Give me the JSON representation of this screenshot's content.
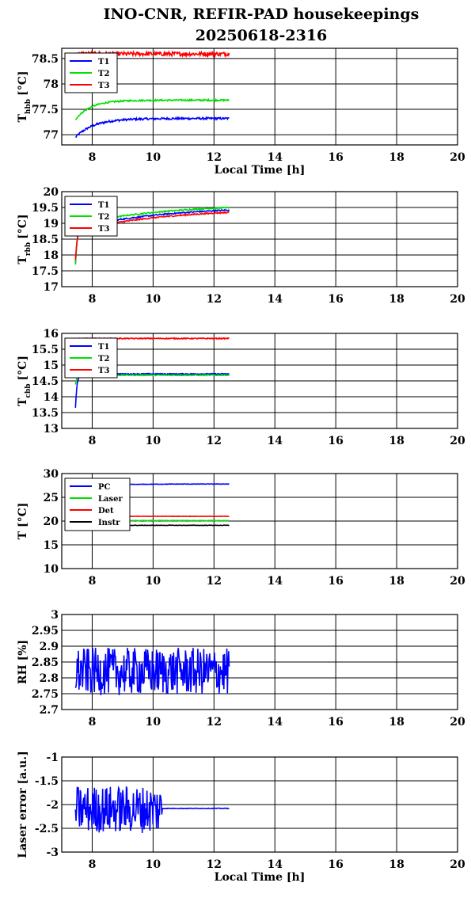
{
  "title_line1": "INO-CNR, REFIR-PAD housekeepings",
  "title_line2": "20250618-2316",
  "colors": {
    "blue": "#0000ff",
    "green": "#00e000",
    "red": "#ff0000",
    "black": "#000000"
  },
  "chart_data": [
    {
      "type": "line",
      "ylabel_main": "T",
      "ylabel_sub": "hbb",
      "ylabel_tail": "[°C]",
      "xlabel": "Local Time [h]",
      "xlim": [
        7,
        20
      ],
      "ylim": [
        76.8,
        78.7
      ],
      "xticks": [
        "8",
        "10",
        "12",
        "14",
        "16",
        "18",
        "20"
      ],
      "yticks": [
        "77",
        "77.5",
        "78",
        "78.5"
      ],
      "grid": true,
      "legend_position": "top-left",
      "series": [
        {
          "name": "T1",
          "color": "blue",
          "start": 76.95,
          "level": 77.32,
          "tau": 0.6,
          "noise": 0.02
        },
        {
          "name": "T2",
          "color": "green",
          "start": 77.3,
          "level": 77.68,
          "tau": 0.5,
          "noise": 0.015
        },
        {
          "name": "T3",
          "color": "red",
          "start": 78.6,
          "level": 78.59,
          "tau": 0.5,
          "noise": 0.04
        }
      ]
    },
    {
      "type": "line",
      "ylabel_main": "T",
      "ylabel_sub": "rbb",
      "ylabel_tail": "[°C]",
      "xlabel": "",
      "xlim": [
        7,
        20
      ],
      "ylim": [
        17,
        20
      ],
      "xticks": [
        "8",
        "10",
        "12",
        "14",
        "16",
        "18",
        "20"
      ],
      "yticks": [
        "17",
        "17.5",
        "18",
        "18.5",
        "19",
        "19.5",
        "20"
      ],
      "grid": true,
      "legend_position": "top-left",
      "series": [
        {
          "name": "T1",
          "color": "blue",
          "start": 17.75,
          "level": 19.55,
          "drift": 0.7,
          "tau": 0.08,
          "noise": 0.02
        },
        {
          "name": "T2",
          "color": "green",
          "start": 17.7,
          "level": 19.62,
          "drift": 0.65,
          "tau": 0.08,
          "noise": 0.02
        },
        {
          "name": "T3",
          "color": "red",
          "start": 17.85,
          "level": 19.48,
          "drift": 0.72,
          "tau": 0.08,
          "noise": 0.02
        }
      ]
    },
    {
      "type": "line",
      "ylabel_main": "T",
      "ylabel_sub": "cbb",
      "ylabel_tail": "[°C]",
      "xlabel": "",
      "xlim": [
        7,
        20
      ],
      "ylim": [
        13,
        16
      ],
      "xticks": [
        "8",
        "10",
        "12",
        "14",
        "16",
        "18",
        "20"
      ],
      "yticks": [
        "13",
        "13.5",
        "14",
        "14.5",
        "15",
        "15.5",
        "16"
      ],
      "grid": true,
      "legend_position": "top-left",
      "series": [
        {
          "name": "T1",
          "color": "blue",
          "start": 13.65,
          "level": 14.72,
          "tau": 0.05,
          "noise": 0.015
        },
        {
          "name": "T2",
          "color": "green",
          "start": 14.4,
          "level": 14.68,
          "tau": 0.05,
          "noise": 0.015
        },
        {
          "name": "T3",
          "color": "red",
          "start": 15.8,
          "level": 15.84,
          "tau": 0.05,
          "noise": 0.015
        }
      ]
    },
    {
      "type": "line",
      "ylabel_main": "T [°C]",
      "ylabel_sub": "",
      "ylabel_tail": "",
      "xlabel": "",
      "xlim": [
        7,
        20
      ],
      "ylim": [
        10,
        30
      ],
      "xticks": [
        "8",
        "10",
        "12",
        "14",
        "16",
        "18",
        "20"
      ],
      "yticks": [
        "10",
        "15",
        "20",
        "25",
        "30"
      ],
      "grid": true,
      "legend_position": "top-left",
      "series": [
        {
          "name": "PC",
          "color": "blue",
          "start": 27.2,
          "level": 27.8,
          "tau": 1.0,
          "noise": 0.05
        },
        {
          "name": "Laser",
          "color": "green",
          "start": 19.8,
          "level": 20.1,
          "tau": 0.5,
          "noise": 0.05
        },
        {
          "name": "Det",
          "color": "red",
          "start": 20.9,
          "level": 21.0,
          "tau": 0.5,
          "noise": 0.04
        },
        {
          "name": "Instr",
          "color": "black",
          "start": 19.0,
          "level": 19.1,
          "tau": 0.5,
          "noise": 0.05
        }
      ]
    },
    {
      "type": "line",
      "ylabel_main": "RH [%]",
      "ylabel_sub": "",
      "ylabel_tail": "",
      "xlabel": "",
      "xlim": [
        7,
        20
      ],
      "ylim": [
        2.7,
        3
      ],
      "xticks": [
        "8",
        "10",
        "12",
        "14",
        "16",
        "18",
        "20"
      ],
      "yticks": [
        "2.7",
        "2.75",
        "2.8",
        "2.85",
        "2.9",
        "2.95",
        "3"
      ],
      "grid": true,
      "legend_position": "none",
      "series": [
        {
          "name": "",
          "color": "blue",
          "start": 2.82,
          "level": 2.82,
          "tau": 1.0,
          "noise": 0.075
        }
      ]
    },
    {
      "type": "line",
      "ylabel_main": "Laser error [a.u.]",
      "ylabel_sub": "",
      "ylabel_tail": "",
      "xlabel": "Local Time [h]",
      "xlim": [
        7,
        20
      ],
      "ylim": [
        -3,
        -1
      ],
      "xticks": [
        "8",
        "10",
        "12",
        "14",
        "16",
        "18",
        "20"
      ],
      "yticks": [
        "-3",
        "-2.5",
        "-2",
        "-1.5",
        "-1"
      ],
      "grid": true,
      "legend_position": "none",
      "series": [
        {
          "name": "",
          "color": "blue",
          "start": -2.1,
          "level": -2.1,
          "tau": 1.0,
          "noise": 0.5,
          "quiet_after": 10.3,
          "quiet_level": -2.08
        }
      ]
    }
  ]
}
